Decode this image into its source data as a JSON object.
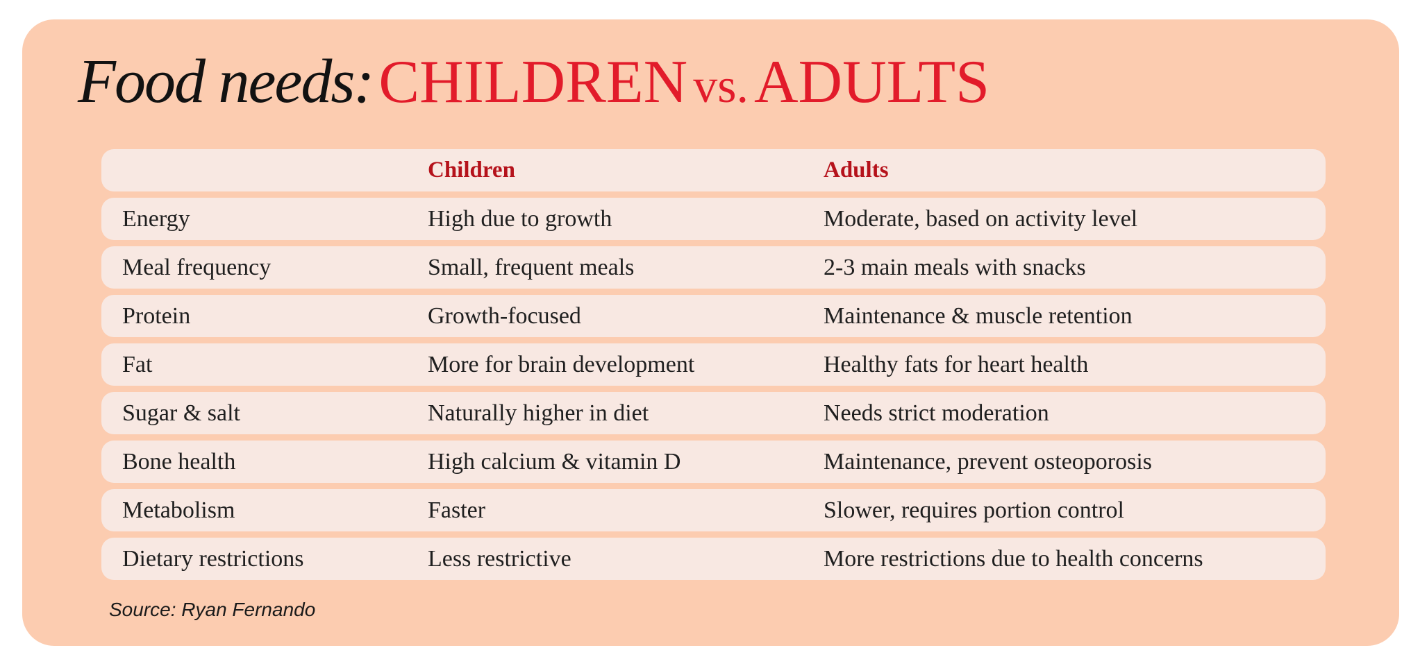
{
  "title": {
    "lead": "Food needs:",
    "children": "CHILDREN",
    "vs": "vs.",
    "adults": "ADULTS"
  },
  "table": {
    "headers": [
      "",
      "Children",
      "Adults"
    ],
    "rows": [
      [
        "Energy",
        "High due to growth",
        "Moderate, based on activity level"
      ],
      [
        "Meal frequency",
        "Small, frequent meals",
        "2-3 main meals with snacks"
      ],
      [
        "Protein",
        "Growth-focused",
        "Maintenance & muscle retention"
      ],
      [
        "Fat",
        "More for brain development",
        "Healthy fats for heart health"
      ],
      [
        "Sugar & salt",
        "Naturally higher in diet",
        "Needs strict moderation"
      ],
      [
        "Bone health",
        "High calcium & vitamin D",
        "Maintenance, prevent osteoporosis"
      ],
      [
        "Metabolism",
        "Faster",
        "Slower, requires portion control"
      ],
      [
        "Dietary restrictions",
        "Less restrictive",
        "More restrictions due to health concerns"
      ]
    ]
  },
  "source": "Source: Ryan Fernando",
  "colors": {
    "card_background": "#fcccb0",
    "row_background": "#f8e8e2",
    "title_accent": "#e21b2a",
    "header_text": "#b5121b"
  }
}
